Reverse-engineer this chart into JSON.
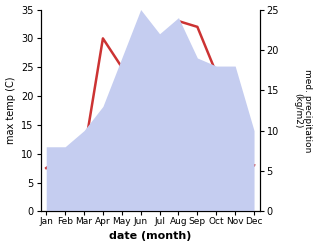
{
  "months": [
    "Jan",
    "Feb",
    "Mar",
    "Apr",
    "May",
    "Jun",
    "Jul",
    "Aug",
    "Sep",
    "Oct",
    "Nov",
    "Dec"
  ],
  "temp": [
    7.5,
    10,
    10,
    30,
    25,
    33,
    29,
    33,
    32,
    24,
    9,
    8
  ],
  "precip": [
    8,
    8,
    10,
    13,
    19,
    25,
    22,
    24,
    19,
    18,
    18,
    10
  ],
  "temp_color": "#cc3333",
  "precip_color": "#c5cdf0",
  "temp_ylim": [
    0,
    35
  ],
  "precip_ylim": [
    0,
    25
  ],
  "temp_yticks": [
    0,
    5,
    10,
    15,
    20,
    25,
    30,
    35
  ],
  "precip_yticks": [
    0,
    5,
    10,
    15,
    20,
    25
  ],
  "xlabel": "date (month)",
  "ylabel_left": "max temp (C)",
  "ylabel_right": "med. precipitation\n(kg/m2)",
  "background_color": "#ffffff"
}
